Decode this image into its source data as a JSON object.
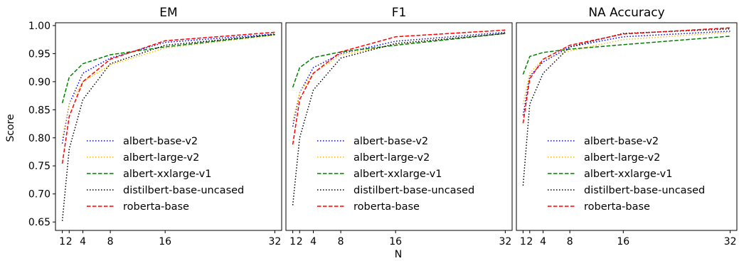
{
  "chart_data": [
    {
      "type": "line",
      "title": "EM",
      "xlabel": "",
      "ylabel": "Score",
      "x": [
        1,
        2,
        4,
        8,
        16,
        32
      ],
      "xticks": [
        "1",
        "2",
        "4",
        "8",
        "16",
        "32"
      ],
      "xlim": [
        0,
        33
      ],
      "ylim": [
        0.635,
        1.005
      ],
      "yticks": [
        "0.65",
        "0.70",
        "0.75",
        "0.80",
        "0.85",
        "0.90",
        "0.95",
        "1.00"
      ],
      "legend_position": "lower-right",
      "series": [
        {
          "name": "albert-base-v2",
          "color": "#0000ff",
          "style": "dotted",
          "values": [
            0.79,
            0.86,
            0.915,
            0.942,
            0.97,
            0.985
          ]
        },
        {
          "name": "albert-large-v2",
          "color": "#ffbf00",
          "style": "dotted",
          "values": [
            0.8,
            0.86,
            0.9,
            0.93,
            0.96,
            0.983
          ]
        },
        {
          "name": "albert-xxlarge-v1",
          "color": "#008000",
          "style": "dashed",
          "values": [
            0.862,
            0.908,
            0.932,
            0.948,
            0.962,
            0.984
          ]
        },
        {
          "name": "distilbert-base-uncased",
          "color": "#000000",
          "style": "dotted",
          "values": [
            0.652,
            0.78,
            0.868,
            0.932,
            0.965,
            0.984
          ]
        },
        {
          "name": "roberta-base",
          "color": "#ff0000",
          "style": "dashed",
          "values": [
            0.754,
            0.838,
            0.9,
            0.94,
            0.973,
            0.988
          ]
        }
      ]
    },
    {
      "type": "line",
      "title": "F1",
      "xlabel": "N",
      "ylabel": "",
      "x": [
        1,
        2,
        4,
        8,
        16,
        32
      ],
      "xticks": [
        "1",
        "2",
        "4",
        "8",
        "16",
        "32"
      ],
      "xlim": [
        0,
        33
      ],
      "ylim": [
        0.635,
        1.005
      ],
      "legend_position": "lower-right",
      "series": [
        {
          "name": "albert-base-v2",
          "color": "#0000ff",
          "style": "dotted",
          "values": [
            0.82,
            0.88,
            0.925,
            0.95,
            0.972,
            0.988
          ]
        },
        {
          "name": "albert-large-v2",
          "color": "#ffbf00",
          "style": "dotted",
          "values": [
            0.83,
            0.88,
            0.915,
            0.948,
            0.966,
            0.986
          ]
        },
        {
          "name": "albert-xxlarge-v1",
          "color": "#008000",
          "style": "dashed",
          "values": [
            0.89,
            0.925,
            0.943,
            0.953,
            0.965,
            0.986
          ]
        },
        {
          "name": "distilbert-base-uncased",
          "color": "#000000",
          "style": "dotted",
          "values": [
            0.68,
            0.8,
            0.885,
            0.942,
            0.968,
            0.986
          ]
        },
        {
          "name": "roberta-base",
          "color": "#ff0000",
          "style": "dashed",
          "values": [
            0.788,
            0.868,
            0.915,
            0.953,
            0.98,
            0.992
          ]
        }
      ]
    },
    {
      "type": "line",
      "title": "NA Accuracy",
      "xlabel": "",
      "ylabel": "",
      "x": [
        1,
        2,
        4,
        8,
        16,
        32
      ],
      "xticks": [
        "1",
        "2",
        "4",
        "8",
        "16",
        "32"
      ],
      "xlim": [
        0,
        33
      ],
      "ylim": [
        0.635,
        1.005
      ],
      "legend_position": "lower-right",
      "series": [
        {
          "name": "albert-base-v2",
          "color": "#0000ff",
          "style": "dotted",
          "values": [
            0.84,
            0.91,
            0.935,
            0.962,
            0.98,
            0.99
          ]
        },
        {
          "name": "albert-large-v2",
          "color": "#ffbf00",
          "style": "dotted",
          "values": [
            0.86,
            0.915,
            0.94,
            0.955,
            0.975,
            0.988
          ]
        },
        {
          "name": "albert-xxlarge-v1",
          "color": "#008000",
          "style": "dashed",
          "values": [
            0.913,
            0.945,
            0.952,
            0.958,
            0.966,
            0.981
          ]
        },
        {
          "name": "distilbert-base-uncased",
          "color": "#000000",
          "style": "dotted",
          "values": [
            0.715,
            0.86,
            0.915,
            0.962,
            0.986,
            0.994
          ]
        },
        {
          "name": "roberta-base",
          "color": "#ff0000",
          "style": "dashed",
          "values": [
            0.826,
            0.905,
            0.94,
            0.965,
            0.985,
            0.996
          ]
        }
      ]
    }
  ]
}
